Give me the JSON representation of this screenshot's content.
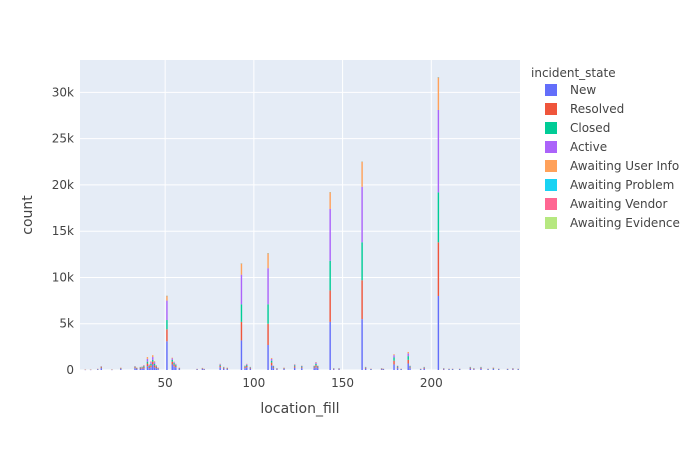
{
  "chart_data": {
    "type": "bar",
    "barmode": "stack",
    "xlabel": "location_fill",
    "ylabel": "count",
    "xlim": [
      2,
      250
    ],
    "ylim": [
      0,
      33500
    ],
    "x_ticks": [
      50,
      100,
      150,
      200
    ],
    "y_ticks": [
      0,
      5000,
      10000,
      15000,
      20000,
      25000,
      30000
    ],
    "y_tick_labels": [
      "0",
      "5k",
      "10k",
      "15k",
      "20k",
      "25k",
      "30k"
    ],
    "legend": {
      "title": "incident_state",
      "placement": "right"
    },
    "grid": true,
    "bar_width": 0.8,
    "series": [
      {
        "name": "New",
        "color": "#636efa"
      },
      {
        "name": "Resolved",
        "color": "#ef553b"
      },
      {
        "name": "Closed",
        "color": "#00cc96"
      },
      {
        "name": "Active",
        "color": "#ab63fa"
      },
      {
        "name": "Awaiting User Info",
        "color": "#ffa15a"
      },
      {
        "name": "Awaiting Problem",
        "color": "#19d3f3"
      },
      {
        "name": "Awaiting Vendor",
        "color": "#ff6692"
      },
      {
        "name": "Awaiting Evidence",
        "color": "#b6e880"
      }
    ],
    "x": [
      5,
      8,
      12,
      14,
      20,
      25,
      33,
      34,
      36,
      37,
      38,
      40,
      41,
      42,
      43,
      44,
      45,
      46,
      51,
      54,
      55,
      56,
      58,
      68,
      71,
      72,
      81,
      83,
      85,
      93,
      95,
      96,
      98,
      108,
      110,
      111,
      113,
      117,
      123,
      127,
      134,
      135,
      136,
      143,
      145,
      148,
      161,
      163,
      166,
      172,
      173,
      179,
      181,
      183,
      187,
      188,
      194,
      196,
      204,
      207,
      210,
      212,
      216,
      222,
      224,
      228,
      232,
      235,
      238,
      243,
      246,
      249
    ],
    "values": [
      [
        20,
        20,
        50,
        200,
        20,
        100,
        200,
        100,
        150,
        150,
        200,
        400,
        200,
        300,
        600,
        300,
        200,
        100,
        3100,
        600,
        400,
        300,
        100,
        50,
        100,
        50,
        300,
        150,
        100,
        3200,
        200,
        300,
        150,
        2700,
        500,
        200,
        80,
        100,
        250,
        200,
        200,
        300,
        200,
        5200,
        80,
        80,
        5500,
        150,
        60,
        80,
        60,
        600,
        200,
        60,
        700,
        200,
        60,
        150,
        8000,
        80,
        60,
        60,
        60,
        150,
        80,
        150,
        60,
        120,
        60,
        60,
        80,
        60
      ],
      [
        10,
        10,
        30,
        100,
        10,
        60,
        100,
        70,
        80,
        100,
        150,
        300,
        150,
        200,
        300,
        200,
        120,
        60,
        1300,
        300,
        200,
        150,
        60,
        30,
        50,
        30,
        150,
        80,
        60,
        2000,
        120,
        150,
        80,
        2300,
        300,
        100,
        50,
        60,
        150,
        100,
        100,
        200,
        100,
        3400,
        50,
        50,
        4200,
        80,
        30,
        50,
        30,
        400,
        100,
        30,
        400,
        100,
        30,
        80,
        5800,
        50,
        30,
        30,
        30,
        80,
        50,
        80,
        30,
        60,
        30,
        30,
        50,
        30
      ],
      [
        5,
        5,
        20,
        50,
        5,
        40,
        60,
        40,
        50,
        60,
        80,
        200,
        100,
        150,
        200,
        150,
        80,
        40,
        1000,
        200,
        150,
        100,
        40,
        20,
        30,
        20,
        100,
        50,
        40,
        1900,
        80,
        100,
        50,
        2100,
        200,
        80,
        30,
        40,
        100,
        80,
        80,
        150,
        80,
        3200,
        30,
        30,
        4100,
        50,
        20,
        30,
        20,
        350,
        80,
        20,
        400,
        80,
        20,
        50,
        5400,
        30,
        20,
        20,
        20,
        50,
        30,
        50,
        20,
        40,
        20,
        20,
        30,
        20
      ],
      [
        5,
        5,
        20,
        40,
        5,
        30,
        50,
        30,
        40,
        50,
        60,
        300,
        100,
        200,
        300,
        200,
        80,
        40,
        2100,
        150,
        100,
        80,
        30,
        15,
        30,
        15,
        80,
        40,
        30,
        3200,
        60,
        80,
        40,
        3900,
        200,
        60,
        20,
        30,
        80,
        60,
        60,
        150,
        60,
        5600,
        20,
        20,
        6000,
        40,
        15,
        20,
        15,
        250,
        60,
        15,
        300,
        60,
        15,
        40,
        8900,
        20,
        15,
        15,
        15,
        40,
        20,
        40,
        15,
        30,
        15,
        15,
        20,
        15
      ],
      [
        2,
        2,
        10,
        20,
        2,
        20,
        20,
        20,
        20,
        20,
        30,
        200,
        50,
        80,
        200,
        100,
        40,
        20,
        500,
        80,
        50,
        40,
        20,
        10,
        20,
        10,
        40,
        20,
        20,
        1200,
        30,
        40,
        20,
        1600,
        100,
        30,
        10,
        20,
        40,
        30,
        30,
        60,
        30,
        1800,
        10,
        10,
        2700,
        20,
        10,
        10,
        10,
        100,
        30,
        10,
        150,
        30,
        10,
        20,
        3500,
        10,
        10,
        10,
        10,
        20,
        10,
        20,
        10,
        20,
        10,
        10,
        10,
        10
      ],
      [
        0,
        0,
        0,
        0,
        0,
        0,
        0,
        0,
        0,
        0,
        0,
        0,
        0,
        0,
        0,
        0,
        0,
        0,
        10,
        0,
        0,
        0,
        0,
        0,
        0,
        0,
        0,
        0,
        0,
        10,
        0,
        0,
        0,
        10,
        0,
        0,
        0,
        0,
        0,
        0,
        0,
        0,
        0,
        10,
        0,
        0,
        10,
        0,
        0,
        0,
        0,
        0,
        0,
        0,
        0,
        0,
        0,
        0,
        20,
        0,
        0,
        0,
        0,
        0,
        0,
        0,
        0,
        0,
        0,
        0,
        0,
        0
      ],
      [
        0,
        0,
        0,
        0,
        0,
        0,
        0,
        0,
        0,
        0,
        0,
        0,
        0,
        0,
        0,
        0,
        0,
        0,
        5,
        0,
        0,
        0,
        0,
        0,
        0,
        0,
        0,
        0,
        0,
        5,
        0,
        0,
        0,
        5,
        0,
        0,
        0,
        0,
        0,
        0,
        0,
        0,
        0,
        5,
        0,
        0,
        5,
        0,
        0,
        0,
        0,
        0,
        0,
        0,
        0,
        0,
        0,
        0,
        10,
        0,
        0,
        0,
        0,
        0,
        0,
        0,
        0,
        0,
        0,
        0,
        0,
        0
      ],
      [
        0,
        0,
        0,
        0,
        0,
        0,
        0,
        0,
        0,
        0,
        0,
        0,
        0,
        0,
        0,
        0,
        0,
        0,
        5,
        0,
        0,
        0,
        0,
        0,
        0,
        0,
        0,
        0,
        0,
        5,
        0,
        0,
        0,
        5,
        0,
        0,
        0,
        0,
        0,
        0,
        0,
        0,
        0,
        5,
        0,
        0,
        5,
        0,
        0,
        0,
        0,
        0,
        0,
        0,
        0,
        0,
        0,
        0,
        10,
        0,
        0,
        0,
        0,
        0,
        0,
        0,
        0,
        0,
        0,
        0,
        0,
        0
      ]
    ]
  }
}
